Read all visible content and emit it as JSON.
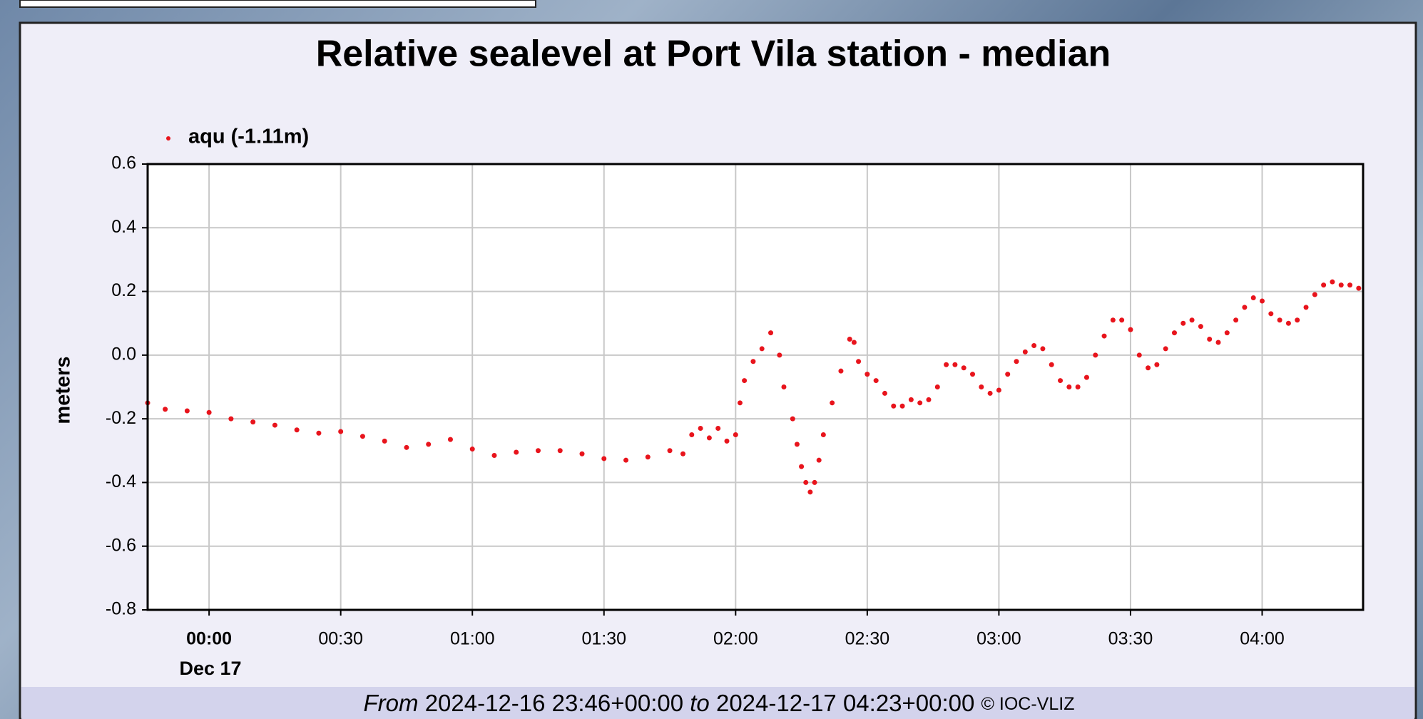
{
  "chart_data": {
    "type": "scatter",
    "title": "Relative sealevel at Port Vila station - median",
    "y_label": "meters",
    "x_date_label": "Dec 17",
    "xlim": [
      -14,
      263
    ],
    "ylim": [
      -0.8,
      0.6
    ],
    "grid": true,
    "yticks": [
      {
        "value": 0.6,
        "label": "0.6"
      },
      {
        "value": 0.4,
        "label": "0.4"
      },
      {
        "value": 0.2,
        "label": "0.2"
      },
      {
        "value": 0,
        "label": "0.0"
      },
      {
        "value": -0.2,
        "label": "-0.2"
      },
      {
        "value": -0.4,
        "label": "-0.4"
      },
      {
        "value": -0.6,
        "label": "-0.6"
      },
      {
        "value": -0.8,
        "label": "-0.8"
      }
    ],
    "xticks": [
      {
        "value": 0,
        "label": "00:00"
      },
      {
        "value": 30,
        "label": "00:30"
      },
      {
        "value": 60,
        "label": "01:00"
      },
      {
        "value": 90,
        "label": "01:30"
      },
      {
        "value": 120,
        "label": "02:00"
      },
      {
        "value": 150,
        "label": "02:30"
      },
      {
        "value": 180,
        "label": "03:00"
      },
      {
        "value": 210,
        "label": "03:30"
      },
      {
        "value": 240,
        "label": "04:00"
      }
    ],
    "series": [
      {
        "name": "aqu (-1.11m)",
        "color": "#e8141c",
        "x": [
          -14,
          -10,
          -5,
          0,
          5,
          10,
          15,
          20,
          25,
          30,
          35,
          40,
          45,
          50,
          55,
          60,
          65,
          70,
          75,
          80,
          85,
          90,
          95,
          100,
          105,
          108,
          110,
          112,
          114,
          116,
          118,
          120,
          121,
          122,
          124,
          126,
          128,
          130,
          131,
          133,
          134,
          135,
          136,
          137,
          138,
          139,
          140,
          142,
          144,
          146,
          147,
          148,
          150,
          152,
          154,
          156,
          158,
          160,
          162,
          164,
          166,
          168,
          170,
          172,
          174,
          176,
          178,
          180,
          182,
          184,
          186,
          188,
          190,
          192,
          194,
          196,
          198,
          200,
          202,
          204,
          206,
          208,
          210,
          212,
          214,
          216,
          218,
          220,
          222,
          224,
          226,
          228,
          230,
          232,
          234,
          236,
          238,
          240,
          242,
          244,
          246,
          248,
          250,
          252,
          254,
          256,
          258,
          260,
          262
        ],
        "values": [
          -0.15,
          -0.17,
          -0.175,
          -0.18,
          -0.2,
          -0.21,
          -0.22,
          -0.235,
          -0.245,
          -0.24,
          -0.255,
          -0.27,
          -0.29,
          -0.28,
          -0.265,
          -0.295,
          -0.315,
          -0.305,
          -0.3,
          -0.3,
          -0.31,
          -0.325,
          -0.33,
          -0.32,
          -0.3,
          -0.31,
          -0.25,
          -0.23,
          -0.26,
          -0.23,
          -0.27,
          -0.25,
          -0.15,
          -0.08,
          -0.02,
          0.02,
          0.07,
          0.0,
          -0.1,
          -0.2,
          -0.28,
          -0.35,
          -0.4,
          -0.43,
          -0.4,
          -0.33,
          -0.25,
          -0.15,
          -0.05,
          0.05,
          0.04,
          -0.02,
          -0.06,
          -0.08,
          -0.12,
          -0.16,
          -0.16,
          -0.14,
          -0.15,
          -0.14,
          -0.1,
          -0.03,
          -0.03,
          -0.04,
          -0.06,
          -0.1,
          -0.12,
          -0.11,
          -0.06,
          -0.02,
          0.01,
          0.03,
          0.02,
          -0.03,
          -0.08,
          -0.1,
          -0.1,
          -0.07,
          0.0,
          0.06,
          0.11,
          0.11,
          0.08,
          0.0,
          -0.04,
          -0.03,
          0.02,
          0.07,
          0.1,
          0.11,
          0.09,
          0.05,
          0.04,
          0.07,
          0.11,
          0.15,
          0.18,
          0.17,
          0.13,
          0.11,
          0.1,
          0.11,
          0.15,
          0.19,
          0.22,
          0.23,
          0.22,
          0.22,
          0.21
        ]
      }
    ]
  },
  "footer": {
    "from_label": "From",
    "start": "2024-12-16 23:46+00:00",
    "to_label": "to",
    "end": "2024-12-17 04:23+00:00",
    "credit": "© IOC-VLIZ"
  }
}
